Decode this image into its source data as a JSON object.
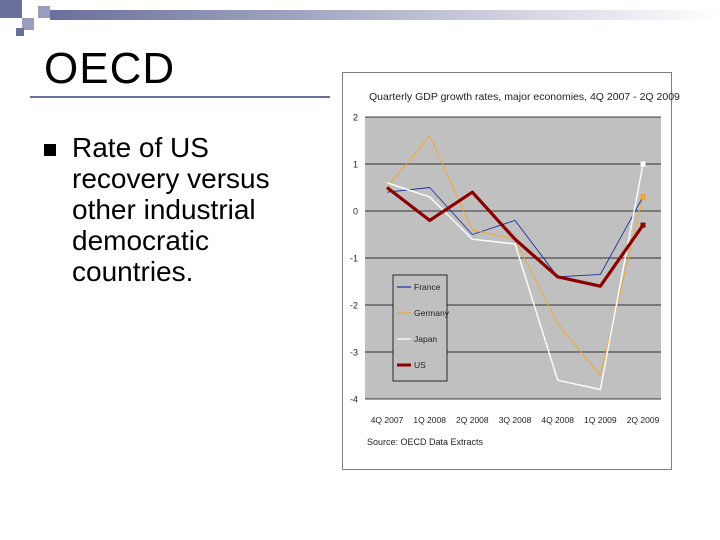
{
  "slide": {
    "title": "OECD",
    "bullets": [
      "Rate of US recovery versus other industrial democratic countries."
    ]
  },
  "colors": {
    "france": "#1f2f9a",
    "germany": "#f5a623",
    "japan": "#ffffff",
    "us": "#8b0000",
    "plot_bg": "#c0c0c0",
    "decor": "#6a6f9c"
  },
  "chart_data": {
    "type": "line",
    "title": "Quarterly GDP growth rates, major economies, 4Q 2007 - 2Q 2009",
    "source": "Source: OECD Data Extracts",
    "categories": [
      "4Q 2007",
      "1Q 2008",
      "2Q 2008",
      "3Q 2008",
      "4Q 2008",
      "1Q 2009",
      "2Q 2009"
    ],
    "y_tick_labels": [
      "2",
      "1",
      "0",
      "-1",
      "-2",
      "-3",
      "-4"
    ],
    "ylim": [
      -4,
      2
    ],
    "grid": true,
    "legend_position": "lower-left",
    "series": [
      {
        "name": "France",
        "color_key": "france",
        "values": [
          0.4,
          0.5,
          -0.5,
          -0.2,
          -1.4,
          -1.35,
          0.3
        ]
      },
      {
        "name": "Germany",
        "color_key": "germany",
        "values": [
          0.5,
          1.6,
          -0.4,
          -0.6,
          -2.4,
          -3.5,
          0.3
        ]
      },
      {
        "name": "Japan",
        "color_key": "japan",
        "values": [
          0.6,
          0.3,
          -0.6,
          -0.7,
          -3.6,
          -3.8,
          1.0
        ]
      },
      {
        "name": "US",
        "color_key": "us",
        "values": [
          0.5,
          -0.2,
          0.4,
          -0.6,
          -1.4,
          -1.6,
          -0.3
        ]
      }
    ]
  }
}
